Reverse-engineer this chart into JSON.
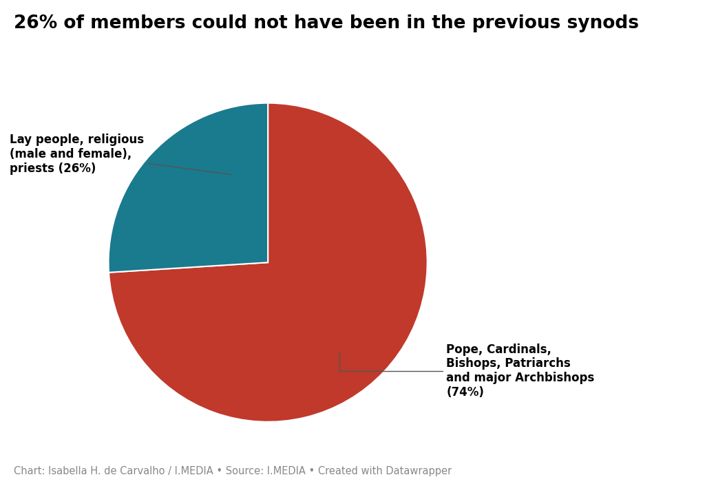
{
  "title": "26% of members could not have been in the previous synods",
  "title_fontsize": 19,
  "title_fontweight": "bold",
  "slices": [
    74,
    26
  ],
  "colors": [
    "#c0392b",
    "#1a7a8e"
  ],
  "startangle": 90,
  "background_color": "#ffffff",
  "footer": "Chart: Isabella H. de Carvalho / I.MEDIA • Source: I.MEDIA • Created with Datawrapper",
  "footer_fontsize": 10.5,
  "wedge_linewidth": 1.5,
  "wedge_edgecolor": "#ffffff",
  "label_red": "Pope, Cardinals,\nBishops, Patriarchs\nand major Archbishops\n(74%)",
  "label_teal": "Lay people, religious\n(male and female),\npriests (26%)",
  "label_fontsize": 12,
  "label_fontweight": "bold"
}
